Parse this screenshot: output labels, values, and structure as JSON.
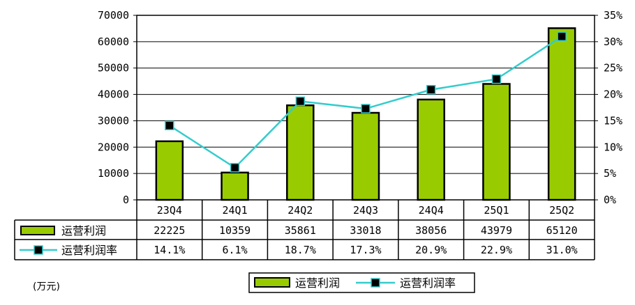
{
  "chart_data": {
    "type": "bar",
    "categories": [
      "23Q4",
      "24Q1",
      "24Q2",
      "24Q3",
      "24Q4",
      "25Q1",
      "25Q2"
    ],
    "series": [
      {
        "name": "运营利润",
        "type": "bar",
        "axis": "left",
        "color": "#99cc00",
        "values": [
          22225,
          10359,
          35861,
          33018,
          38056,
          43979,
          65120
        ],
        "labels": [
          "22225",
          "10359",
          "35861",
          "33018",
          "38056",
          "43979",
          "65120"
        ]
      },
      {
        "name": "运营利润率",
        "type": "line",
        "axis": "right",
        "color": "#33cccc",
        "marker_color": "#000000",
        "values": [
          14.1,
          6.1,
          18.7,
          17.3,
          20.9,
          22.9,
          31.0
        ],
        "labels": [
          "14.1%",
          "6.1%",
          "18.7%",
          "17.3%",
          "20.9%",
          "22.9%",
          "31.0%"
        ]
      }
    ],
    "y_left": {
      "min": 0,
      "max": 70000,
      "step": 10000,
      "ticks": [
        "0",
        "10000",
        "20000",
        "30000",
        "40000",
        "50000",
        "60000",
        "70000"
      ]
    },
    "y_right": {
      "min": 0,
      "max": 35,
      "step": 5,
      "ticks": [
        "0%",
        "5%",
        "10%",
        "15%",
        "20%",
        "25%",
        "30%",
        "35%"
      ]
    },
    "unit_label": "(万元)",
    "grid": true,
    "legend": {
      "position": "bottom-center",
      "entries": [
        "运营利润",
        "运营利润率"
      ]
    },
    "data_table": true
  }
}
